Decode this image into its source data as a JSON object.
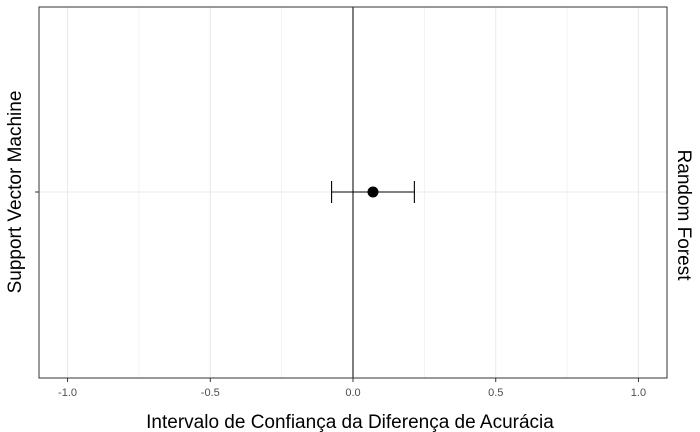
{
  "chart_data": {
    "type": "scatter",
    "title": "",
    "xlabel": "Intervalo de Confiança da Diferença de Acurácia",
    "ylabel_left": "Support Vector Machine",
    "ylabel_right": "Random Forest",
    "xlim": [
      -1.1,
      1.1
    ],
    "x_ticks": [
      -1.0,
      -0.5,
      0.0,
      0.5,
      1.0
    ],
    "x_tick_labels": [
      "-1.0",
      "-0.5",
      "0.0",
      "0.5",
      "1.0"
    ],
    "reference_line_x": 0.0,
    "points": [
      {
        "estimate": 0.07,
        "lower": -0.075,
        "upper": 0.215
      }
    ],
    "grid": true,
    "colors": {
      "grid": "#ebebeb",
      "point": "#000000",
      "panel_border": "#333333",
      "tick_label": "#4d4d4d"
    }
  }
}
